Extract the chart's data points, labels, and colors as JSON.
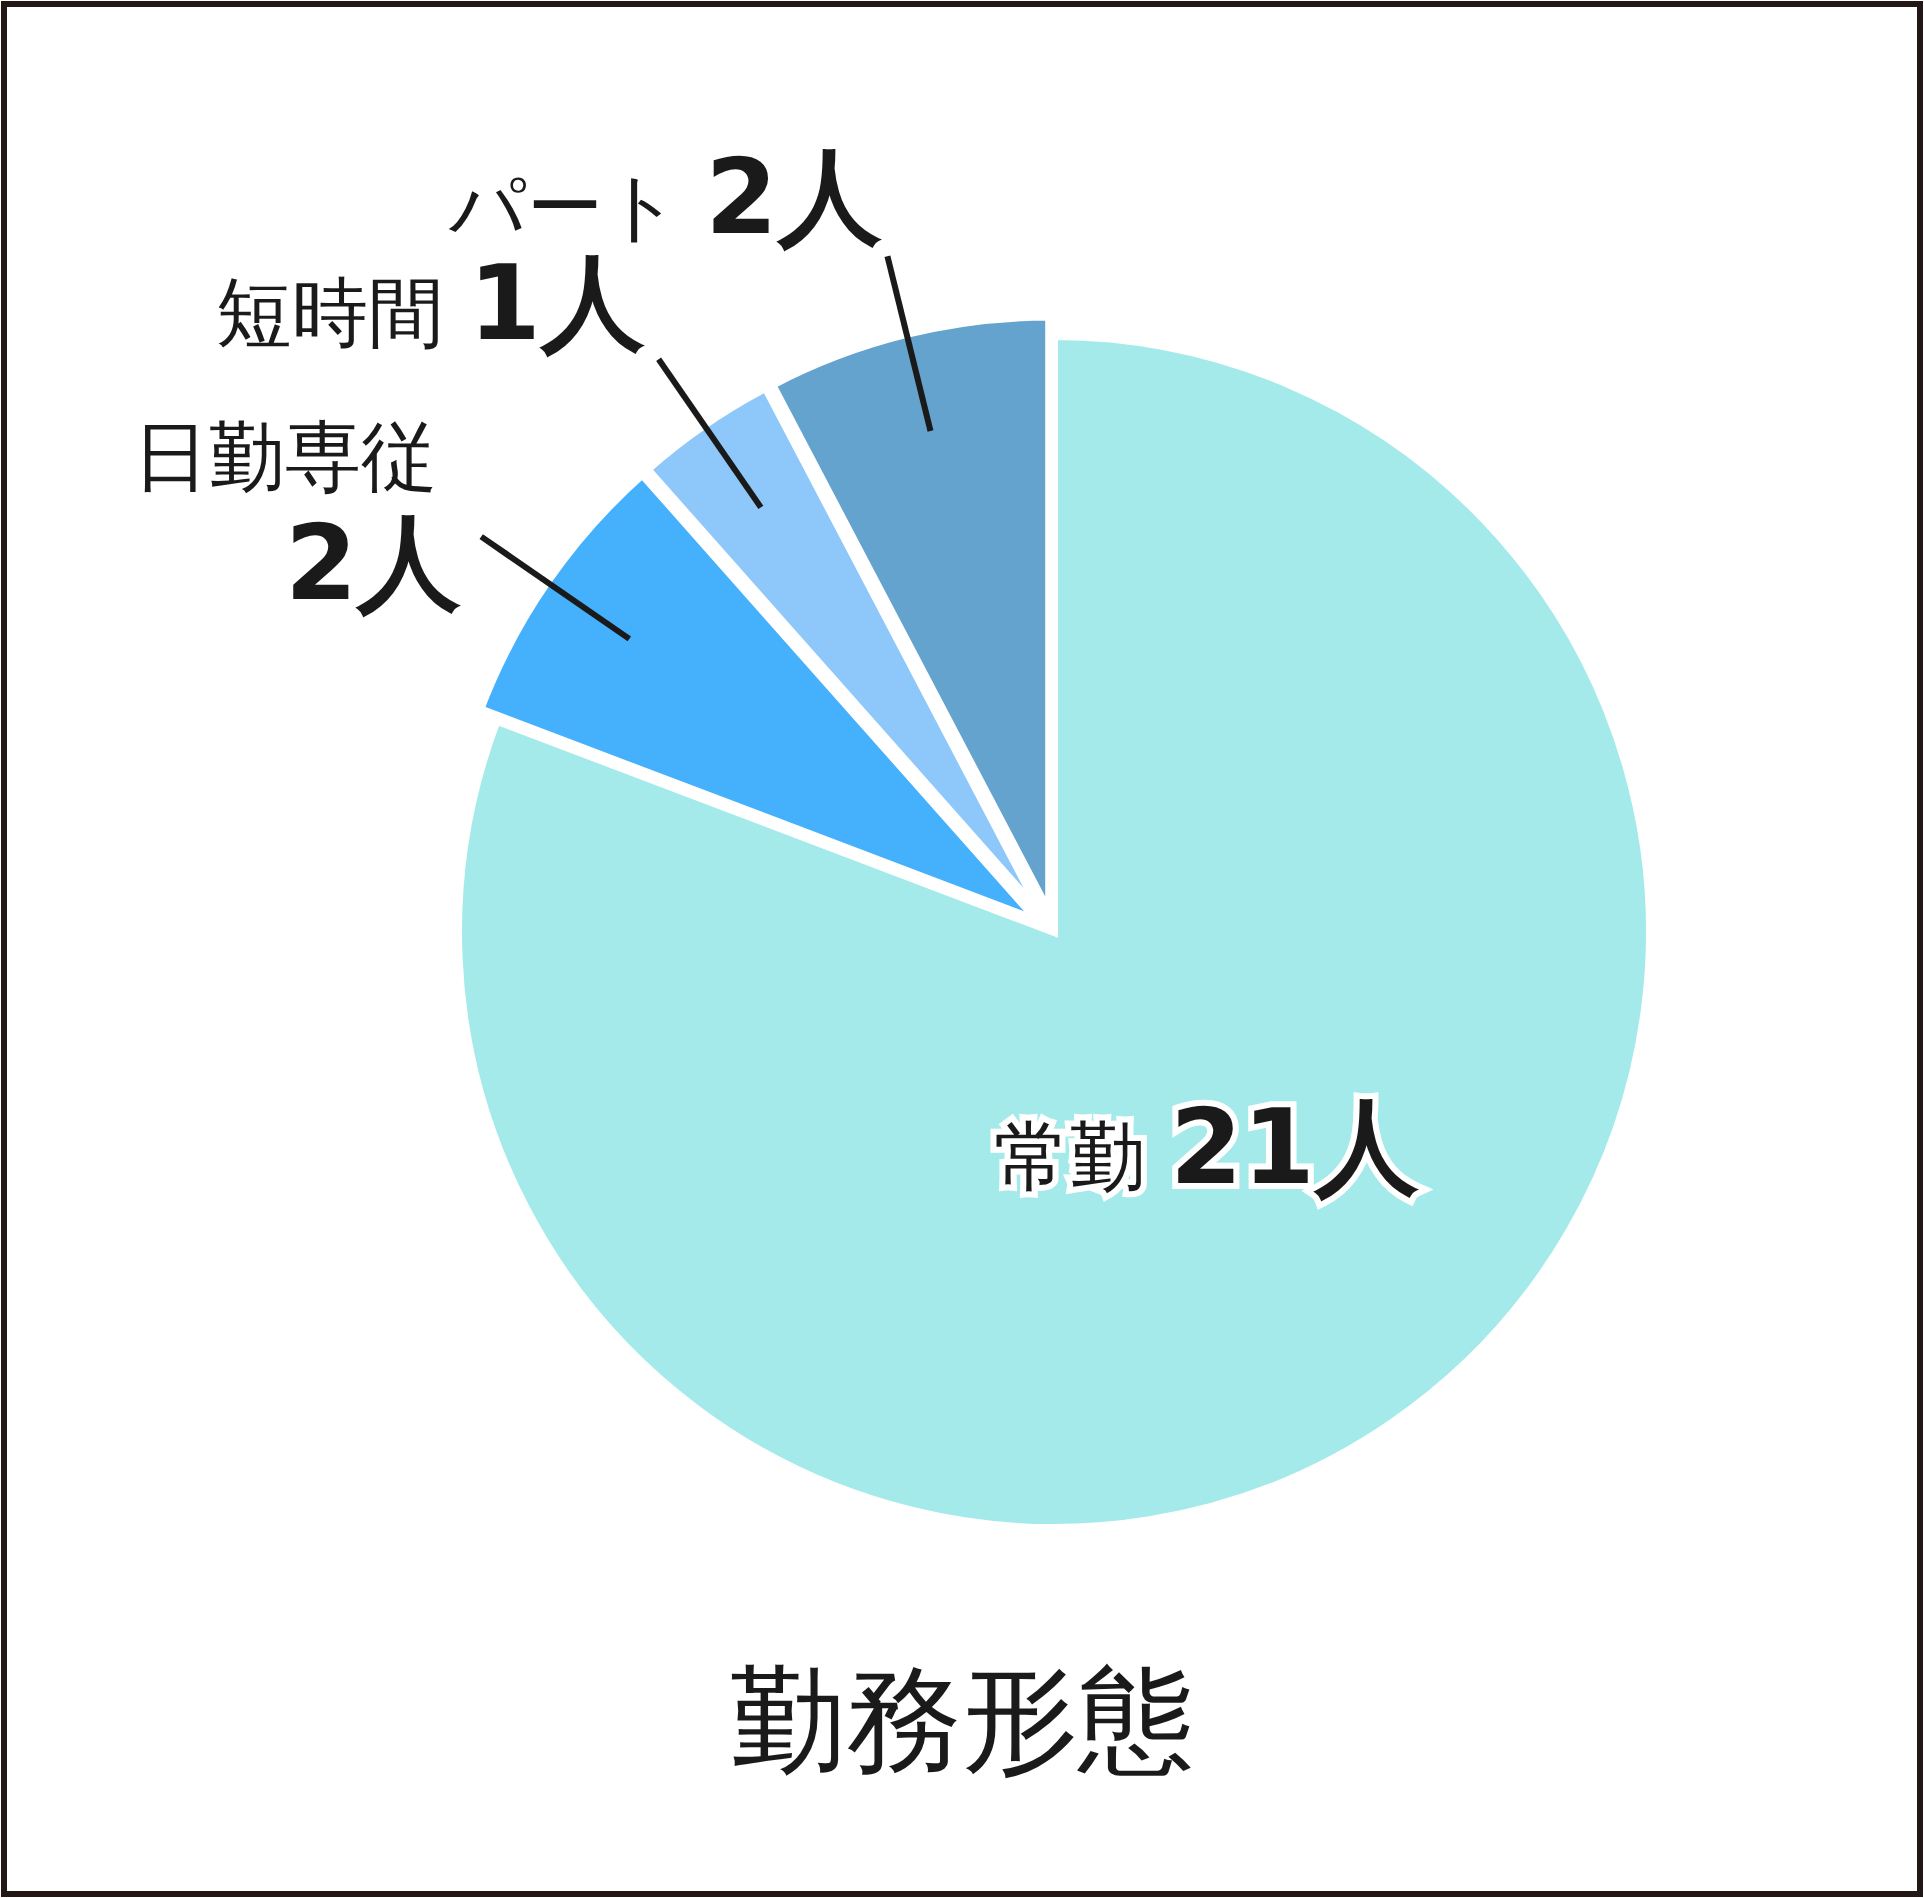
{
  "chart_data": {
    "type": "pie",
    "title": "勤務形態",
    "categories": [
      "常勤",
      "日勤専従",
      "短時間",
      "パート"
    ],
    "values": [
      21,
      2,
      1,
      2
    ],
    "colors": [
      "#a5eaea",
      "#45b0fb",
      "#8ec8fb",
      "#65a3cf"
    ],
    "value_labels": [
      "21人",
      "2人",
      "1人",
      "2人"
    ]
  }
}
